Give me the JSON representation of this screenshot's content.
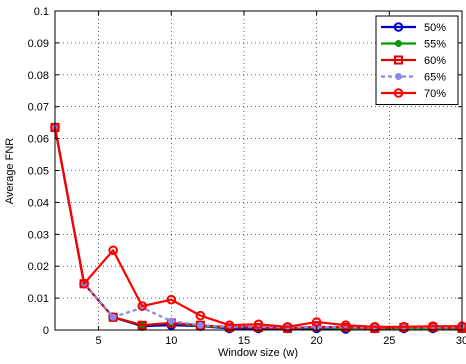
{
  "chart_data": {
    "type": "line",
    "xlabel": "Window size (w)",
    "ylabel": "Average FNR",
    "xlim": [
      2,
      30
    ],
    "ylim": [
      0,
      0.1
    ],
    "xticks": [
      5,
      10,
      15,
      20,
      25,
      30
    ],
    "xtick_labels": [
      "5",
      "10",
      "15",
      "20",
      "25",
      "30"
    ],
    "yticks": [
      0,
      0.01,
      0.02,
      0.03,
      0.04,
      0.05,
      0.06,
      0.07,
      0.08,
      0.09,
      0.1
    ],
    "ytick_labels": [
      "0",
      "0.01",
      "0.02",
      "0.03",
      "0.04",
      "0.05",
      "0.06",
      "0.07",
      "0.08",
      "0.09",
      "0.1"
    ],
    "grid": true,
    "legend_position": "top-right",
    "x": [
      2,
      4,
      6,
      8,
      10,
      12,
      14,
      16,
      18,
      20,
      22,
      24,
      26,
      28,
      30
    ],
    "series": [
      {
        "name": "50%",
        "color": "#0000cc",
        "dashed": false,
        "marker": "circle-open",
        "values": [
          0.0635,
          0.0145,
          0.004,
          0.0012,
          0.0015,
          0.0012,
          0.0005,
          0.0005,
          0.0005,
          0.0005,
          0.0003,
          0.0005,
          0.0005,
          0.0005,
          0.0005
        ]
      },
      {
        "name": "55%",
        "color": "#009900",
        "dashed": false,
        "marker": "dot",
        "values": [
          0.0635,
          0.0145,
          0.004,
          0.0015,
          0.0022,
          0.0012,
          0.0008,
          0.0008,
          0.0005,
          0.0008,
          0.0005,
          0.0005,
          0.0005,
          0.0005,
          0.0005
        ]
      },
      {
        "name": "60%",
        "color": "#dd0000",
        "dashed": false,
        "marker": "square-open",
        "values": [
          0.0635,
          0.0145,
          0.004,
          0.0015,
          0.0022,
          0.0015,
          0.0008,
          0.0008,
          0.0005,
          0.001,
          0.0008,
          0.0005,
          0.0008,
          0.0008,
          0.0005
        ]
      },
      {
        "name": "65%",
        "color": "#8888ee",
        "dashed": true,
        "marker": "dot",
        "values": [
          0.0635,
          0.0145,
          0.004,
          0.007,
          0.0028,
          0.0015,
          0.001,
          0.001,
          0.0008,
          0.001,
          0.0008,
          0.0008,
          0.0008,
          0.0008,
          0.0008
        ]
      },
      {
        "name": "70%",
        "color": "#ff0000",
        "dashed": false,
        "marker": "circle-open",
        "values": [
          0.0635,
          0.0145,
          0.025,
          0.0075,
          0.0095,
          0.0045,
          0.0015,
          0.0018,
          0.001,
          0.0025,
          0.0015,
          0.001,
          0.001,
          0.0012,
          0.0012
        ]
      }
    ]
  }
}
